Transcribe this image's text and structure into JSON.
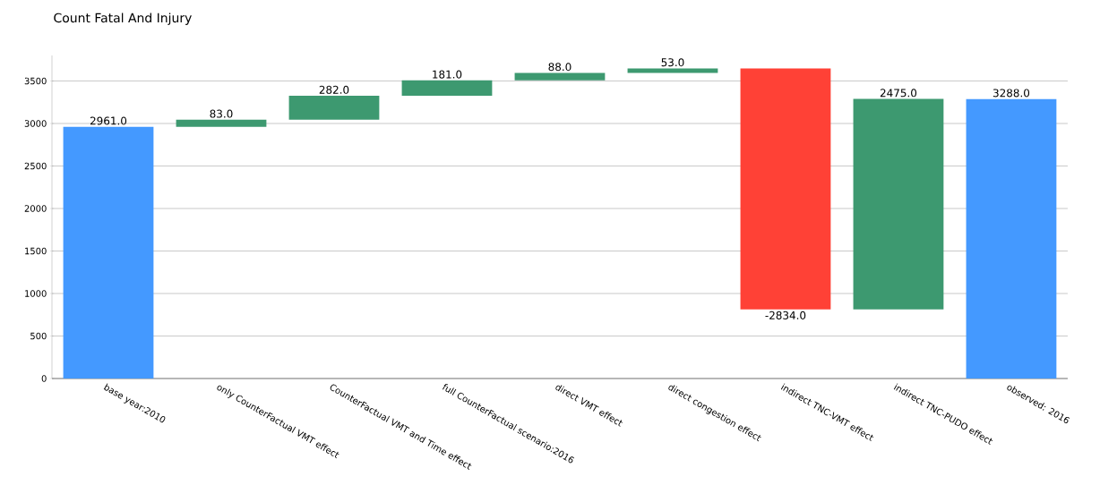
{
  "chart_data": {
    "type": "bar",
    "title": "Count Fatal And Injury",
    "categories": [
      "base year:2010",
      "only CounterFactual VMT effect",
      "CounterFactual VMT and Time effect",
      "full CounterFactual scenario:2016",
      "direct VMT effect",
      "direct congestion effect",
      "indirect TNC-VMT effect",
      "indirect TNC-PUDO effect",
      "observed: 2016"
    ],
    "values": [
      2961,
      83,
      282,
      181,
      88,
      53,
      -2834,
      2475,
      3288
    ],
    "base": [
      0,
      2961,
      3044,
      3326,
      3507,
      3595,
      3648,
      814,
      0
    ],
    "colors": [
      "#4499ff",
      "#3d9970",
      "#3d9970",
      "#3d9970",
      "#3d9970",
      "#3d9970",
      "#ff4136",
      "#3d9970",
      "#4499ff"
    ],
    "value_labels": [
      "2961.0",
      "83.0",
      "282.0",
      "181.0",
      "88.0",
      "53.0",
      "-2834.0",
      "2475.0",
      "3288.0"
    ],
    "ylim": [
      0,
      3800
    ],
    "yticks": [
      0,
      500,
      1000,
      1500,
      2000,
      2500,
      3000,
      3500
    ],
    "grid": "y"
  }
}
